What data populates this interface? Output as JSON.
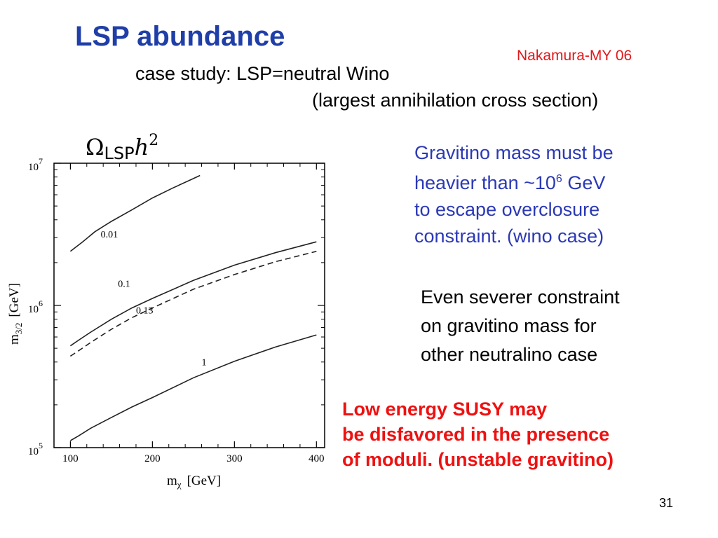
{
  "slide": {
    "title": "LSP abundance",
    "citation": "Nakamura-MY 06",
    "subtitle_1": "case study:  LSP=neutral Wino",
    "subtitle_2": "(largest annihilation cross section)",
    "blue_note": {
      "line1": "Gravitino mass must be",
      "line2_a": "heavier than ~10",
      "line2_sup": "6",
      "line2_b": " GeV",
      "line3": "to escape overclosure",
      "line4": "constraint. (wino case)"
    },
    "black_note": {
      "line1": "Even severer constraint",
      "line2": "on gravitino mass for",
      "line3": "other neutralino case"
    },
    "red_note": {
      "line1": "Low energy SUSY may",
      "line2": "be disfavored in the presence",
      "line3": "of moduli. (unstable gravitino)"
    },
    "slide_number": "31",
    "colors": {
      "title": "#1f3ea8",
      "citation": "#e0181b",
      "blue_note": "#2b39b5",
      "red_note": "#ee1111"
    }
  },
  "chart_data": {
    "type": "line",
    "title_main": "Ω",
    "title_sub": "LSP",
    "title_var": "h",
    "title_sup": "2",
    "xlabel_var": "m",
    "xlabel_sub": "χ",
    "xlabel_unit": "[GeV]",
    "ylabel_var": "m",
    "ylabel_sub": "3/2",
    "ylabel_unit": "[GeV]",
    "xlim": [
      80,
      410
    ],
    "ylim": [
      100000,
      10000000
    ],
    "yscale": "log",
    "x_ticks": [
      "100",
      "200",
      "300",
      "400"
    ],
    "y_ticks": [
      {
        "base": "10",
        "exp": "5"
      },
      {
        "base": "10",
        "exp": "6"
      },
      {
        "base": "10",
        "exp": "7"
      }
    ],
    "series": [
      {
        "name": "0.01",
        "style": "solid",
        "x": [
          100,
          115,
          130,
          150,
          175,
          200,
          225,
          250,
          258
        ],
        "y": [
          2400000,
          2800000,
          3300000,
          3900000,
          4700000,
          5700000,
          6700000,
          7800000,
          8200000
        ]
      },
      {
        "name": "0.1",
        "style": "solid",
        "x": [
          100,
          110,
          125,
          150,
          175,
          200,
          250,
          300,
          350,
          400
        ],
        "y": [
          520000,
          570000,
          650000,
          800000,
          960000,
          1120000,
          1500000,
          1920000,
          2350000,
          2800000
        ]
      },
      {
        "name": "0.13",
        "style": "dashed",
        "x": [
          100,
          110,
          125,
          150,
          175,
          200,
          250,
          300,
          350,
          400
        ],
        "y": [
          440000,
          480000,
          550000,
          680000,
          820000,
          960000,
          1300000,
          1650000,
          2030000,
          2400000
        ]
      },
      {
        "name": "1",
        "style": "solid",
        "x": [
          100,
          110,
          125,
          150,
          175,
          200,
          250,
          300,
          350,
          400
        ],
        "y": [
          112000,
          121000,
          137000,
          163000,
          193000,
          225000,
          310000,
          405000,
          510000,
          620000
        ]
      }
    ],
    "curve_labels": [
      {
        "text": "0.01",
        "x": 137,
        "y": 3000000
      },
      {
        "text": "0.1",
        "x": 158,
        "y": 1350000
      },
      {
        "text": "0.13",
        "x": 180,
        "y": 880000
      },
      {
        "text": "1",
        "x": 260,
        "y": 380000
      }
    ],
    "grid": false
  }
}
